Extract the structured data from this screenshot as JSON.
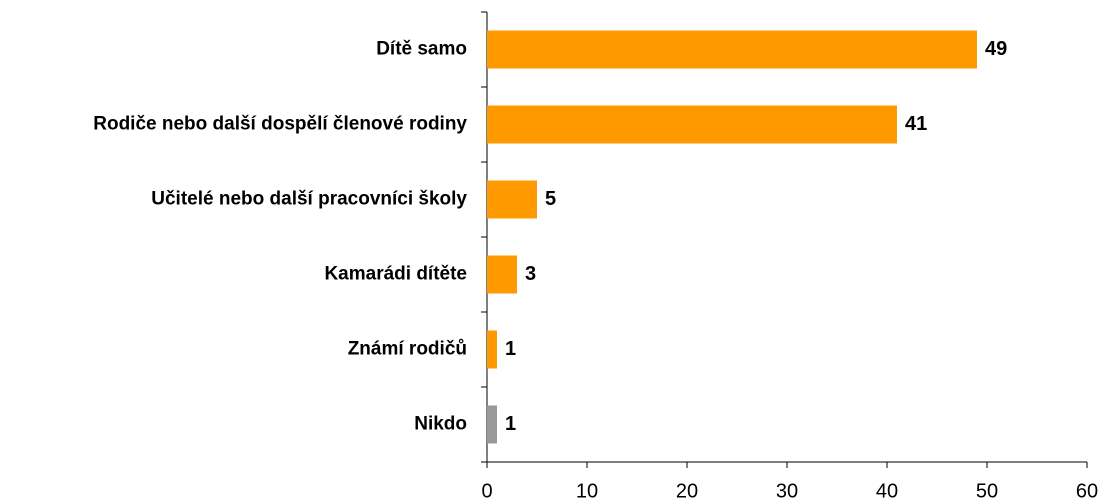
{
  "chart_data": {
    "type": "hbar",
    "categories": [
      "Dítě samo",
      "Rodiče nebo další dospělí členové rodiny",
      "Učitelé nebo další pracovníci školy",
      "Kamarádi dítěte",
      "Známí rodičů",
      "Nikdo"
    ],
    "values": [
      49,
      41,
      5,
      3,
      1,
      1
    ],
    "colors": [
      "#ff9900",
      "#ff9900",
      "#ff9900",
      "#ff9900",
      "#ff9900",
      "#999999"
    ],
    "xlim": [
      0,
      60
    ],
    "xticks": [
      0,
      10,
      20,
      30,
      40,
      50,
      60
    ],
    "grid": false
  }
}
